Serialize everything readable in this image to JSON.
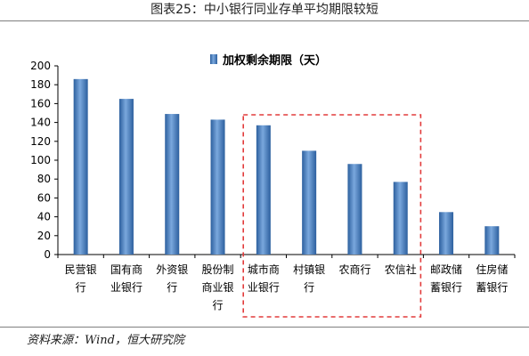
{
  "header": {
    "title": "图表25：中小银行同业存单平均期限较短"
  },
  "footer": {
    "source": "资料来源：Wind，恒大研究院"
  },
  "colors": {
    "bar": "#4a7fc0",
    "bar_dark": "#2c5f9e",
    "highlight_box": "#e23b3b"
  },
  "chart_data": {
    "type": "bar",
    "title": "",
    "xlabel": "",
    "ylabel": "",
    "ylim": [
      0,
      200
    ],
    "yticks": [
      0,
      20,
      40,
      60,
      80,
      100,
      120,
      140,
      160,
      180,
      200
    ],
    "grid": false,
    "legend_position": "top-center",
    "categories": [
      [
        "民营银",
        "行"
      ],
      [
        "国有商",
        "业银行"
      ],
      [
        "外资银",
        "行"
      ],
      [
        "股份制",
        "商业银",
        "行"
      ],
      [
        "城市商",
        "业银行"
      ],
      [
        "村镇银",
        "行"
      ],
      [
        "农商行"
      ],
      [
        "农信社"
      ],
      [
        "邮政储",
        "蓄银行"
      ],
      [
        "住房储",
        "蓄银行"
      ]
    ],
    "series": [
      {
        "name": "加权剩余期限（天）",
        "values": [
          186,
          165,
          149,
          143,
          137,
          110,
          96,
          77,
          45,
          30
        ]
      }
    ],
    "highlight": {
      "from_index": 4,
      "to_index": 7,
      "style": "dashed-box"
    }
  }
}
